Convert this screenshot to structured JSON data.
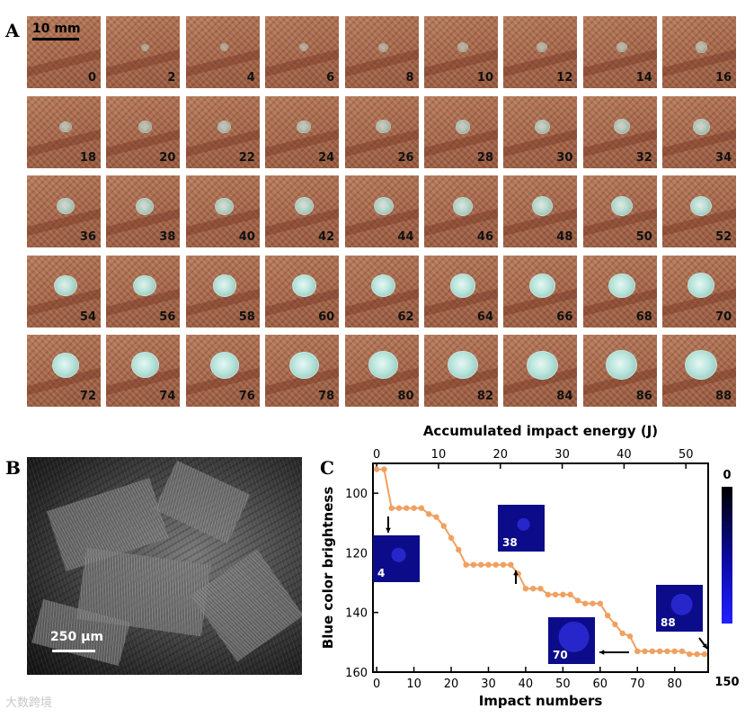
{
  "panels": {
    "a": "A",
    "b": "B",
    "c": "C"
  },
  "panel_a": {
    "scale_label": "10 mm",
    "tiles": [
      "0",
      "2",
      "4",
      "6",
      "8",
      "10",
      "12",
      "14",
      "16",
      "18",
      "20",
      "22",
      "24",
      "26",
      "28",
      "30",
      "32",
      "34",
      "36",
      "38",
      "40",
      "42",
      "44",
      "46",
      "48",
      "50",
      "52",
      "54",
      "56",
      "58",
      "60",
      "62",
      "64",
      "66",
      "68",
      "70",
      "72",
      "74",
      "76",
      "78",
      "80",
      "82",
      "84",
      "86",
      "88"
    ]
  },
  "panel_b": {
    "scale_label": "250 μm"
  },
  "watermark": "大数跨境",
  "chart_data": {
    "type": "line",
    "xlabel": "Impact numbers",
    "x2label": "Accumulated impact energy (J)",
    "ylabel": "Blue color brightness",
    "xlim": [
      -1,
      89
    ],
    "ylim": [
      160,
      90
    ],
    "x_ticks": [
      0,
      10,
      20,
      30,
      40,
      50,
      60,
      70,
      80
    ],
    "x2_ticks": [
      0,
      10,
      20,
      30,
      40,
      50
    ],
    "y_ticks": [
      100,
      120,
      140,
      160
    ],
    "x": [
      0,
      2,
      4,
      6,
      8,
      10,
      12,
      14,
      16,
      18,
      20,
      22,
      24,
      26,
      28,
      30,
      32,
      34,
      36,
      38,
      40,
      42,
      44,
      46,
      48,
      50,
      52,
      54,
      56,
      58,
      60,
      62,
      64,
      66,
      68,
      70,
      72,
      74,
      76,
      78,
      80,
      82,
      84,
      86,
      88
    ],
    "y": [
      92,
      92,
      105,
      105,
      105,
      105,
      105,
      107,
      108,
      111,
      115,
      119,
      124,
      124,
      124,
      124,
      124,
      124,
      124,
      127,
      132,
      132,
      132,
      134,
      134,
      134,
      134,
      136,
      137,
      137,
      137,
      141,
      144,
      147,
      148,
      153,
      153,
      153,
      153,
      153,
      153,
      153,
      154,
      154,
      154
    ],
    "series_color": "#f0a060",
    "colorbar": {
      "min_label": "0",
      "max_label": "150"
    },
    "insets": [
      {
        "label": "4",
        "point_x": 4
      },
      {
        "label": "38",
        "point_x": 38
      },
      {
        "label": "70",
        "point_x": 70
      },
      {
        "label": "88",
        "point_x": 88
      }
    ]
  }
}
